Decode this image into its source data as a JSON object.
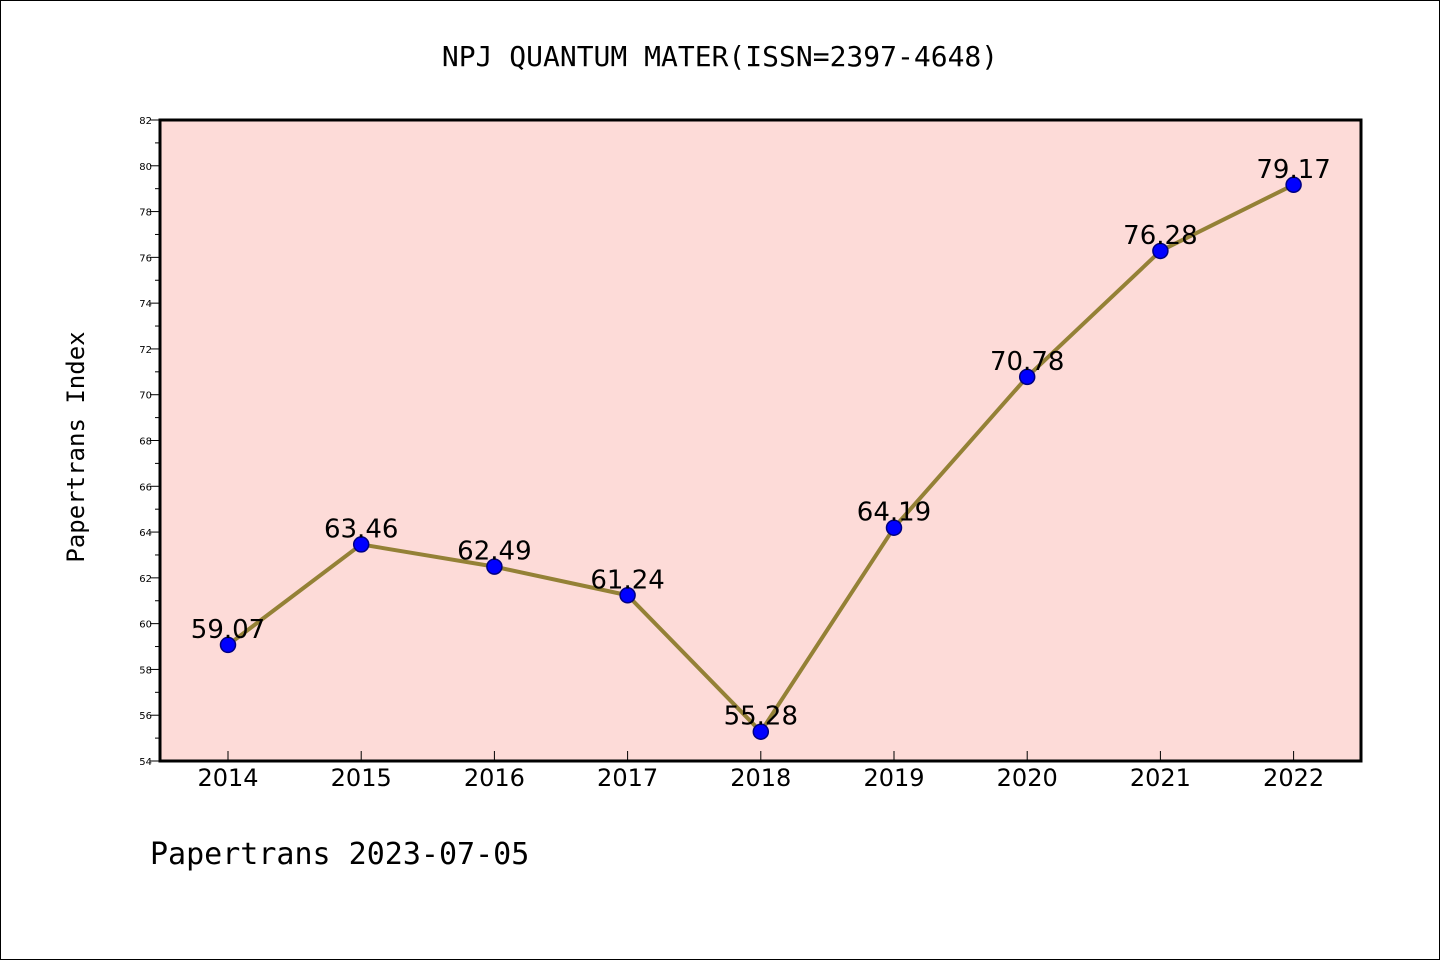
{
  "chart_data": {
    "type": "line",
    "title": "NPJ QUANTUM MATER(ISSN=2397-4648)",
    "xlabel": "",
    "ylabel": "Papertrans Index",
    "footer": "Papertrans 2023-07-05",
    "categories": [
      "2014",
      "2015",
      "2016",
      "2017",
      "2018",
      "2019",
      "2020",
      "2021",
      "2022"
    ],
    "values": [
      59.07,
      63.46,
      62.49,
      61.24,
      55.28,
      64.19,
      70.78,
      76.28,
      79.17
    ],
    "data_labels": [
      "59.07",
      "63.46",
      "62.49",
      "61.24",
      "55.28",
      "64.19",
      "70.78",
      "76.28",
      "79.17"
    ],
    "ylim": [
      54,
      82
    ],
    "yticks": [
      54,
      56,
      58,
      60,
      62,
      64,
      66,
      68,
      70,
      72,
      74,
      76,
      78,
      80,
      82
    ],
    "grid": false,
    "legend": "none",
    "colors": {
      "plot_background": "#fddbd8",
      "line": "#948136",
      "marker_fill": "#0000ff",
      "marker_edge": "#000080",
      "axes": "#000000"
    }
  }
}
